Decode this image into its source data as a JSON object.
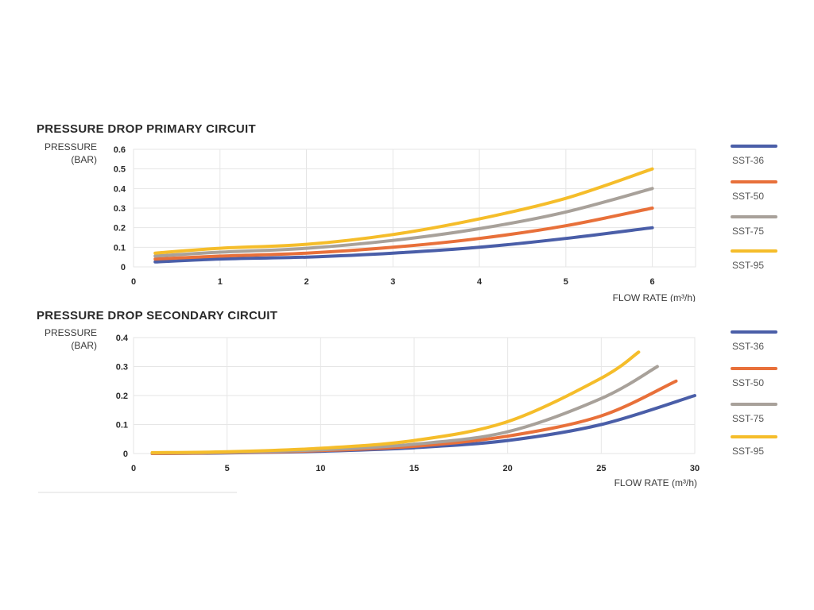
{
  "colors": {
    "SST-36": "#4a5ea8",
    "SST-50": "#e8703a",
    "SST-75": "#a8a19a",
    "SST-95": "#f5bd2a"
  },
  "chart_data": [
    {
      "type": "line",
      "title": "PRESSURE DROP PRIMARY CIRCUIT",
      "ylabel_line1": "PRESSURE",
      "ylabel_line2": "(BAR)",
      "xlabel": "FLOW RATE (m³/h)",
      "xlim": [
        0,
        6.5
      ],
      "ylim": [
        0,
        0.6
      ],
      "xticks": [
        0,
        1,
        2,
        3,
        4,
        5,
        6
      ],
      "xtick_labels": [
        "0",
        "1",
        "2",
        "3",
        "4",
        "5",
        "6"
      ],
      "yticks": [
        0,
        0.1,
        0.2,
        0.3,
        0.4,
        0.5,
        0.6
      ],
      "ytick_labels": [
        "0",
        "0.1",
        "0.2",
        "0.3",
        "0.4",
        "0.5",
        "0.6"
      ],
      "grid": true,
      "legend_position": "right",
      "series": [
        {
          "name": "SST-36",
          "x": [
            0.25,
            1,
            2,
            3,
            4,
            5,
            6
          ],
          "y": [
            0.025,
            0.04,
            0.05,
            0.07,
            0.1,
            0.145,
            0.2
          ]
        },
        {
          "name": "SST-50",
          "x": [
            0.25,
            1,
            2,
            3,
            4,
            5,
            6
          ],
          "y": [
            0.04,
            0.055,
            0.07,
            0.1,
            0.145,
            0.21,
            0.3
          ]
        },
        {
          "name": "SST-75",
          "x": [
            0.25,
            1,
            2,
            3,
            4,
            5,
            6
          ],
          "y": [
            0.055,
            0.075,
            0.095,
            0.135,
            0.195,
            0.28,
            0.4
          ]
        },
        {
          "name": "SST-95",
          "x": [
            0.25,
            1,
            2,
            3,
            4,
            5,
            6
          ],
          "y": [
            0.07,
            0.095,
            0.115,
            0.165,
            0.245,
            0.35,
            0.5
          ]
        }
      ]
    },
    {
      "type": "line",
      "title": "PRESSURE DROP SECONDARY CIRCUIT",
      "ylabel_line1": "PRESSURE",
      "ylabel_line2": "(BAR)",
      "xlabel": "FLOW RATE (m³/h)",
      "xlim": [
        0,
        30
      ],
      "ylim": [
        0,
        0.4
      ],
      "xticks": [
        0,
        5,
        10,
        15,
        20,
        25,
        30
      ],
      "xtick_labels": [
        "0",
        "5",
        "10",
        "15",
        "20",
        "25",
        "30"
      ],
      "yticks": [
        0,
        0.1,
        0.2,
        0.3,
        0.4
      ],
      "ytick_labels": [
        "0",
        "0.1",
        "0.2",
        "0.3",
        "0.4"
      ],
      "grid": true,
      "legend_position": "right",
      "series": [
        {
          "name": "SST-36",
          "x": [
            1,
            5,
            10,
            15,
            20,
            25,
            30
          ],
          "y": [
            0.0,
            0.002,
            0.008,
            0.02,
            0.045,
            0.1,
            0.2
          ]
        },
        {
          "name": "SST-50",
          "x": [
            1,
            5,
            10,
            15,
            20,
            25,
            29
          ],
          "y": [
            0.0,
            0.003,
            0.01,
            0.025,
            0.06,
            0.13,
            0.25
          ]
        },
        {
          "name": "SST-75",
          "x": [
            1,
            5,
            10,
            15,
            20,
            25,
            28
          ],
          "y": [
            0.002,
            0.004,
            0.013,
            0.032,
            0.075,
            0.19,
            0.3
          ]
        },
        {
          "name": "SST-95",
          "x": [
            1,
            5,
            10,
            15,
            20,
            25,
            27
          ],
          "y": [
            0.003,
            0.006,
            0.018,
            0.045,
            0.11,
            0.26,
            0.35
          ]
        }
      ]
    }
  ]
}
